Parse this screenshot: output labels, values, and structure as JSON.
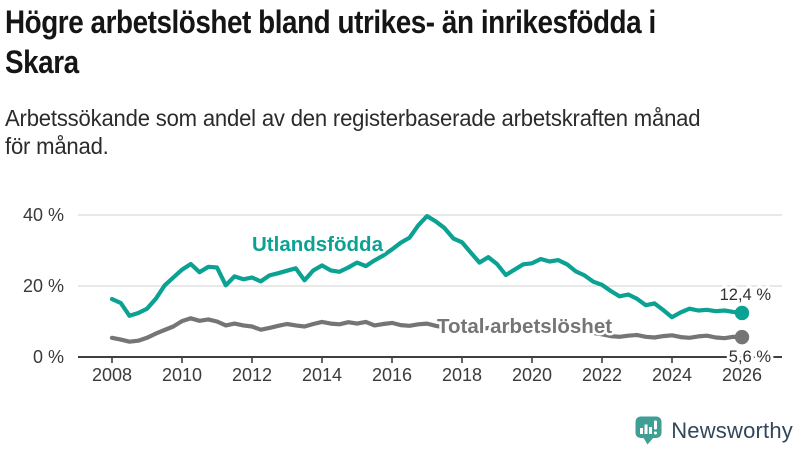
{
  "header": {
    "title": "Högre arbetslöshet bland utrikes- än inrikesfödda i\nSkara",
    "subtitle": "Arbetssökande som andel av den registerbaserade arbetskraften månad\nför månad."
  },
  "chart_data": {
    "type": "line",
    "title": "Högre arbetslöshet bland utrikes- än inrikesfödda i Skara",
    "subtitle": "Arbetssökande som andel av den registerbaserade arbetskraften månad för månad.",
    "unit": "%",
    "grid": "horizontal",
    "legend_position": "inline-labels-on-lines",
    "xlim": [
      2008,
      2026
    ],
    "ylim": [
      0,
      42
    ],
    "x_ticks": [
      2008,
      2010,
      2012,
      2014,
      2016,
      2018,
      2020,
      2022,
      2024,
      2026
    ],
    "y_ticks": [
      {
        "value": 0,
        "label": "0 %"
      },
      {
        "value": 20,
        "label": "20 %"
      },
      {
        "value": 40,
        "label": "40 %"
      }
    ],
    "x": [
      2008.0,
      2008.25,
      2008.5,
      2008.75,
      2009.0,
      2009.25,
      2009.5,
      2009.75,
      2010.0,
      2010.25,
      2010.5,
      2010.75,
      2011.0,
      2011.25,
      2011.5,
      2011.75,
      2012.0,
      2012.25,
      2012.5,
      2012.75,
      2013.0,
      2013.25,
      2013.5,
      2013.75,
      2014.0,
      2014.25,
      2014.5,
      2014.75,
      2015.0,
      2015.25,
      2015.5,
      2015.75,
      2016.0,
      2016.25,
      2016.5,
      2016.75,
      2017.0,
      2017.25,
      2017.5,
      2017.75,
      2018.0,
      2018.25,
      2018.5,
      2018.75,
      2019.0,
      2019.25,
      2019.5,
      2019.75,
      2020.0,
      2020.25,
      2020.5,
      2020.75,
      2021.0,
      2021.25,
      2021.5,
      2021.75,
      2022.0,
      2022.25,
      2022.5,
      2022.75,
      2023.0,
      2023.25,
      2023.5,
      2023.75,
      2024.0,
      2024.25,
      2024.5,
      2024.75,
      2025.0,
      2025.25,
      2025.5,
      2025.75,
      2026.0
    ],
    "series": [
      {
        "name": "Utlandsfödda",
        "color": "#0ba293",
        "end_label": "12,4 %",
        "end_value": 12.4,
        "values": [
          16.3,
          15.2,
          11.6,
          12.4,
          13.6,
          16.4,
          20.1,
          22.4,
          24.6,
          26.2,
          23.9,
          25.4,
          25.2,
          20.2,
          22.7,
          21.9,
          22.4,
          21.3,
          23.0,
          23.6,
          24.3,
          25.0,
          21.6,
          24.4,
          25.8,
          24.4,
          24.0,
          25.2,
          26.6,
          25.6,
          27.2,
          28.6,
          30.3,
          32.2,
          33.6,
          37.1,
          39.7,
          38.2,
          36.3,
          33.4,
          32.3,
          29.4,
          26.6,
          28.1,
          26.2,
          23.1,
          24.6,
          26.1,
          26.4,
          27.6,
          26.9,
          27.3,
          26.1,
          24.1,
          23.0,
          21.2,
          20.3,
          18.6,
          17.1,
          17.6,
          16.4,
          14.6,
          15.1,
          13.2,
          11.2,
          12.6,
          13.6,
          13.1,
          13.3,
          12.9,
          13.1,
          12.7,
          12.4
        ]
      },
      {
        "name": "Total arbetslöshet",
        "color": "#757575",
        "end_label": "5,6 %",
        "end_value": 5.6,
        "values": [
          5.4,
          4.9,
          4.3,
          4.6,
          5.4,
          6.6,
          7.6,
          8.6,
          10.1,
          10.9,
          10.2,
          10.6,
          10.0,
          8.9,
          9.4,
          8.9,
          8.6,
          7.7,
          8.2,
          8.8,
          9.3,
          8.9,
          8.6,
          9.3,
          9.9,
          9.4,
          9.2,
          9.8,
          9.4,
          9.9,
          8.9,
          9.3,
          9.6,
          9.0,
          8.8,
          9.2,
          9.4,
          8.8,
          8.3,
          8.7,
          8.9,
          8.3,
          7.8,
          8.2,
          8.4,
          7.8,
          7.6,
          8.0,
          8.3,
          9.4,
          9.0,
          8.8,
          8.5,
          7.8,
          7.2,
          6.8,
          6.4,
          5.9,
          5.7,
          6.0,
          6.2,
          5.7,
          5.5,
          5.9,
          6.1,
          5.6,
          5.4,
          5.8,
          6.0,
          5.5,
          5.3,
          5.7,
          5.6
        ]
      }
    ]
  },
  "footer": {
    "brand": "Newsworthy"
  },
  "colors": {
    "accent_teal": "#0ba293",
    "series_gray": "#757575",
    "axis": "#3f3f3f",
    "grid": "#d9d9d9",
    "tick_text": "#3a3a3a",
    "brand_text": "#33475b",
    "brand_icon": "#3f9f94"
  }
}
